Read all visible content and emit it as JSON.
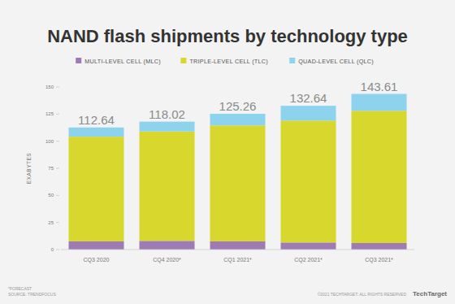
{
  "chart_data": {
    "type": "bar",
    "title": "NAND flash shipments by technology type",
    "y_label": "EXABYTES",
    "categories": [
      "CQ3 2020",
      "CQ4 2020*",
      "CQ1 2021*",
      "CQ2 2021*",
      "CQ3 2021*"
    ],
    "series": [
      {
        "name": "MULTI-LEVEL CELL (MLC)",
        "color": "#9e7bb5",
        "values": [
          7.5,
          8,
          7.5,
          6.5,
          6
        ]
      },
      {
        "name": "TRIPLE-LEVEL CELL (TLC)",
        "color": "#d8d72e",
        "values": [
          96.6,
          101,
          107,
          112.5,
          122
        ]
      },
      {
        "name": "QUAD-LEVEL CELL (QLC)",
        "color": "#8dd3ee",
        "values": [
          8.54,
          9.02,
          10.76,
          13.64,
          15.61
        ]
      }
    ],
    "totals": [
      112.64,
      118.02,
      125.26,
      132.64,
      143.61
    ],
    "stacked": true,
    "grid": false,
    "legend": "top",
    "ylim": [
      0,
      150
    ],
    "yticks": [
      0,
      25,
      50,
      75,
      100,
      125,
      150
    ],
    "footnote": "*FORECAST",
    "source": "SOURCE: TRENDFOCUS",
    "copyright": "©2021 TECHTARGET. ALL RIGHTS RESERVED",
    "brand": "TechTarget"
  }
}
